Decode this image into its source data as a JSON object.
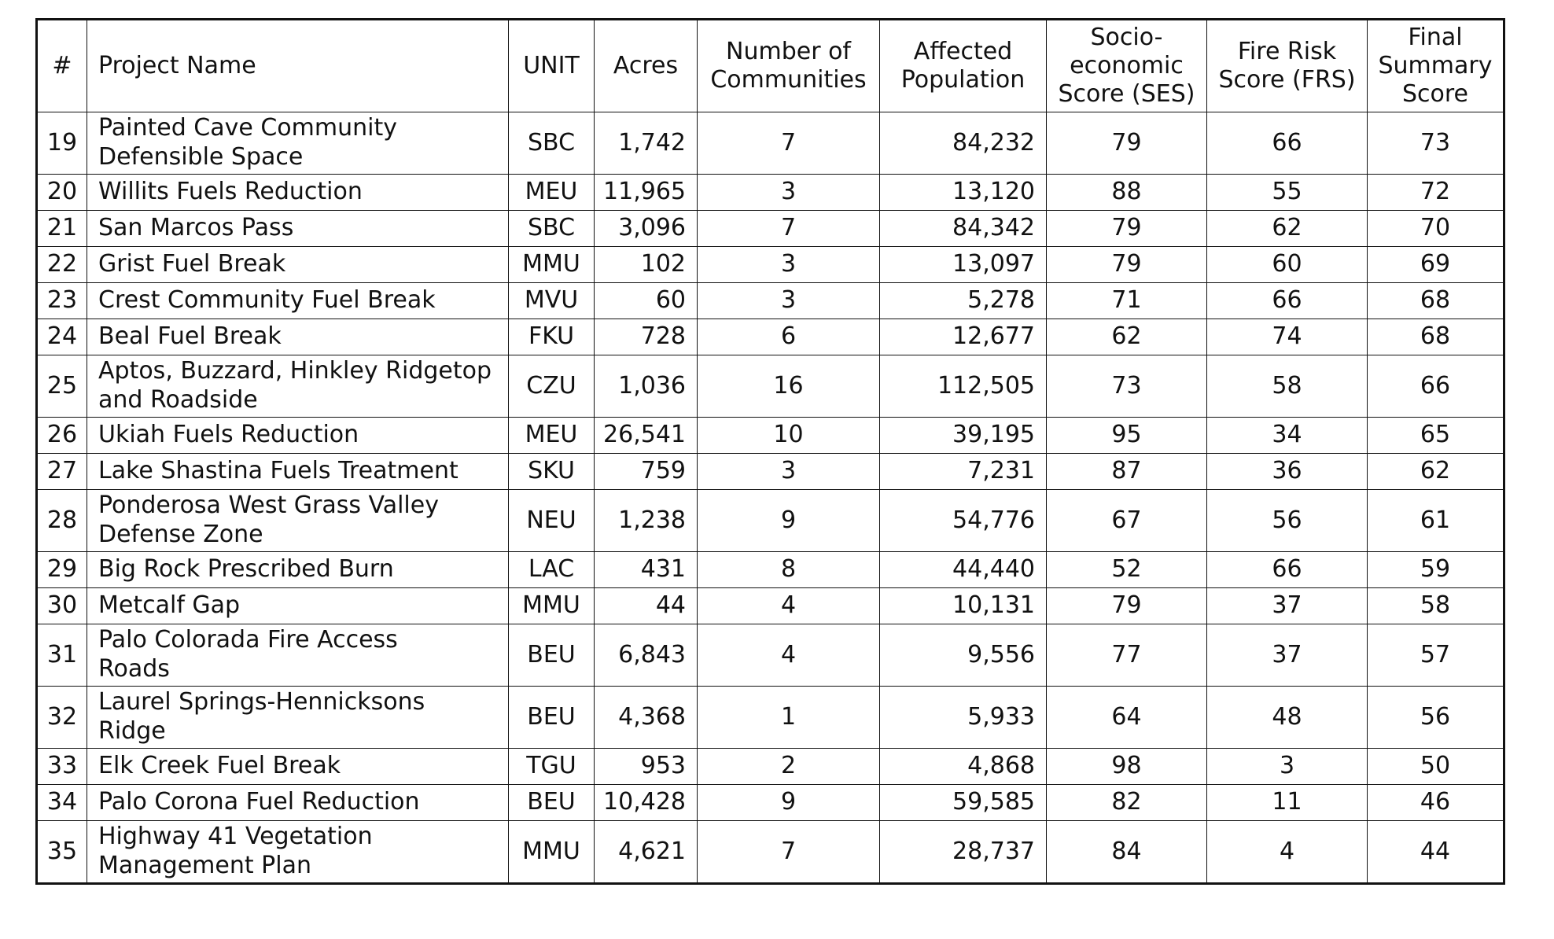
{
  "table": {
    "headers": {
      "num": "#",
      "project": "Project Name",
      "unit": "UNIT",
      "acres": "Acres",
      "communities": [
        "Number of",
        "Communities"
      ],
      "population": [
        "Affected",
        "Population"
      ],
      "ses": [
        "Socio-",
        "economic",
        "Score (SES)"
      ],
      "frs": [
        "Fire Risk",
        "Score (FRS)"
      ],
      "final": [
        "Final",
        "Summary",
        "Score"
      ]
    },
    "rows": [
      {
        "num": "19",
        "name": [
          "Painted Cave Community",
          "Defensible Space"
        ],
        "unit": "SBC",
        "acres": "1,742",
        "communities": "7",
        "population": "84,232",
        "ses": "79",
        "frs": "66",
        "final": "73"
      },
      {
        "num": "20",
        "name": [
          "Willits Fuels Reduction"
        ],
        "unit": "MEU",
        "acres": "11,965",
        "communities": "3",
        "population": "13,120",
        "ses": "88",
        "frs": "55",
        "final": "72"
      },
      {
        "num": "21",
        "name": [
          "San Marcos Pass"
        ],
        "unit": "SBC",
        "acres": "3,096",
        "communities": "7",
        "population": "84,342",
        "ses": "79",
        "frs": "62",
        "final": "70"
      },
      {
        "num": "22",
        "name": [
          "Grist Fuel Break"
        ],
        "unit": "MMU",
        "acres": "102",
        "communities": "3",
        "population": "13,097",
        "ses": "79",
        "frs": "60",
        "final": "69"
      },
      {
        "num": "23",
        "name": [
          "Crest Community Fuel Break"
        ],
        "unit": "MVU",
        "acres": "60",
        "communities": "3",
        "population": "5,278",
        "ses": "71",
        "frs": "66",
        "final": "68"
      },
      {
        "num": "24",
        "name": [
          "Beal Fuel Break"
        ],
        "unit": "FKU",
        "acres": "728",
        "communities": "6",
        "population": "12,677",
        "ses": "62",
        "frs": "74",
        "final": "68"
      },
      {
        "num": "25",
        "name": [
          "Aptos, Buzzard, Hinkley Ridgetop",
          "and Roadside"
        ],
        "unit": "CZU",
        "acres": "1,036",
        "communities": "16",
        "population": "112,505",
        "ses": "73",
        "frs": "58",
        "final": "66"
      },
      {
        "num": "26",
        "name": [
          "Ukiah Fuels Reduction"
        ],
        "unit": "MEU",
        "acres": "26,541",
        "communities": "10",
        "population": "39,195",
        "ses": "95",
        "frs": "34",
        "final": "65"
      },
      {
        "num": "27",
        "name": [
          "Lake Shastina Fuels Treatment"
        ],
        "unit": "SKU",
        "acres": "759",
        "communities": "3",
        "population": "7,231",
        "ses": "87",
        "frs": "36",
        "final": "62"
      },
      {
        "num": "28",
        "name": [
          "Ponderosa West Grass Valley",
          "Defense Zone"
        ],
        "unit": "NEU",
        "acres": "1,238",
        "communities": "9",
        "population": "54,776",
        "ses": "67",
        "frs": "56",
        "final": "61"
      },
      {
        "num": "29",
        "name": [
          "Big Rock Prescribed Burn"
        ],
        "unit": "LAC",
        "acres": "431",
        "communities": "8",
        "population": "44,440",
        "ses": "52",
        "frs": "66",
        "final": "59"
      },
      {
        "num": "30",
        "name": [
          "Metcalf Gap"
        ],
        "unit": "MMU",
        "acres": "44",
        "communities": "4",
        "population": "10,131",
        "ses": "79",
        "frs": "37",
        "final": "58"
      },
      {
        "num": "31",
        "name": [
          "Palo Colorada Fire Access",
          "Roads"
        ],
        "unit": "BEU",
        "acres": "6,843",
        "communities": "4",
        "population": "9,556",
        "ses": "77",
        "frs": "37",
        "final": "57"
      },
      {
        "num": "32",
        "name": [
          "Laurel Springs-Hennicksons",
          "Ridge"
        ],
        "unit": "BEU",
        "acres": "4,368",
        "communities": "1",
        "population": "5,933",
        "ses": "64",
        "frs": "48",
        "final": "56"
      },
      {
        "num": "33",
        "name": [
          "Elk Creek Fuel Break"
        ],
        "unit": "TGU",
        "acres": "953",
        "communities": "2",
        "population": "4,868",
        "ses": "98",
        "frs": "3",
        "final": "50"
      },
      {
        "num": "34",
        "name": [
          "Palo Corona Fuel Reduction"
        ],
        "unit": "BEU",
        "acres": "10,428",
        "communities": "9",
        "population": "59,585",
        "ses": "82",
        "frs": "11",
        "final": "46"
      },
      {
        "num": "35",
        "name": [
          "Highway 41 Vegetation",
          "Management Plan"
        ],
        "unit": "MMU",
        "acres": "4,621",
        "communities": "7",
        "population": "28,737",
        "ses": "84",
        "frs": "4",
        "final": "44"
      }
    ]
  }
}
